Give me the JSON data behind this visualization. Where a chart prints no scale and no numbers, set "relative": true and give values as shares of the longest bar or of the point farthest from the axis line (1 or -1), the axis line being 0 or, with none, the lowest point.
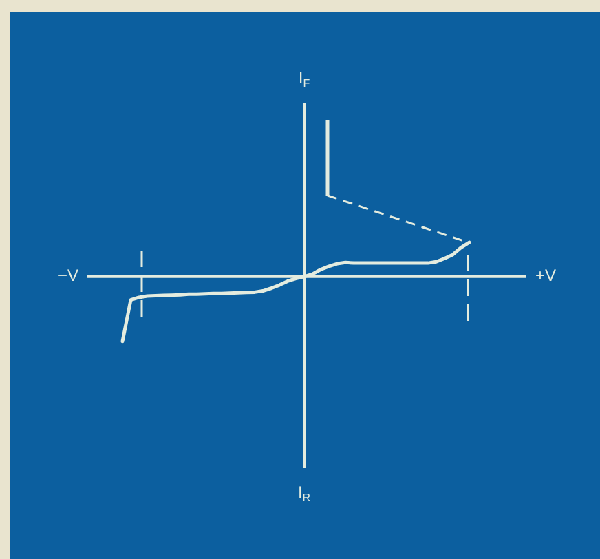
{
  "chart_data": {
    "type": "line",
    "relative": true,
    "categories": [
      null,
      null,
      null,
      null,
      null,
      null,
      null,
      null,
      null,
      null,
      null,
      null,
      null,
      null,
      null,
      null,
      null,
      null,
      null,
      null,
      null,
      null,
      null,
      null,
      null,
      null,
      null,
      null,
      null,
      null,
      null,
      null,
      null,
      null,
      null,
      null,
      null,
      null,
      null,
      null,
      null,
      null,
      null,
      null,
      null,
      null,
      null,
      null,
      null,
      null,
      null,
      null,
      null
    ],
    "series": [
      {
        "color": "#e4ecdf",
        "values": [
          null,
          null,
          null,
          null,
          -1,
          -0.36,
          -0.32,
          -0.3,
          -0.295,
          -0.29,
          -0.285,
          -0.28,
          -0.27,
          -0.27,
          -0.265,
          -0.26,
          -0.26,
          -0.255,
          -0.25,
          -0.245,
          -0.24,
          -0.22,
          -0.18,
          -0.13,
          -0.07,
          -0.03,
          0,
          0.04,
          0.11,
          0.16,
          0.2,
          0.22,
          0.21,
          0.21,
          0.21,
          0.21,
          0.21,
          0.21,
          0.21,
          0.21,
          0.21,
          0.21,
          0.23,
          0.28,
          0.34,
          0.45,
          0.53,
          null,
          null,
          null,
          null,
          null,
          null
        ]
      }
    ],
    "annotations": [
      "−V",
      "+V",
      "I$_{F}$",
      "I$_{R}$"
    ],
    "legend": false,
    "marker": "none",
    "line_style": "solid"
  }
}
